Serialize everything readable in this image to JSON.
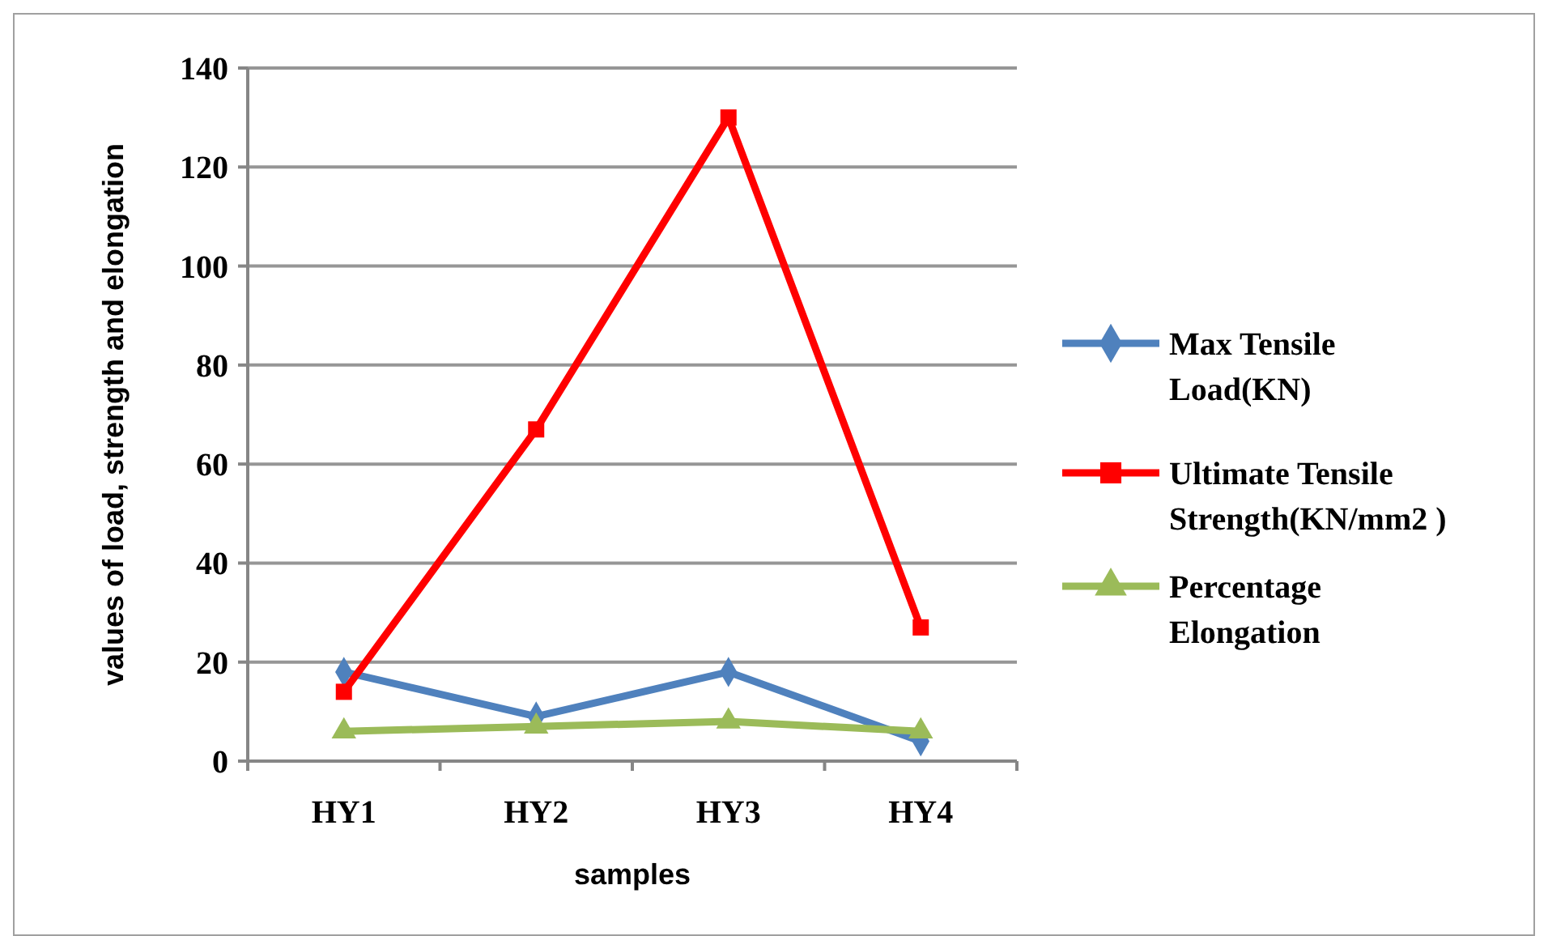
{
  "chart_data": {
    "type": "line",
    "xlabel": "samples",
    "ylabel": "values of load, strength and elongation",
    "categories": [
      "HY1",
      "HY2",
      "HY3",
      "HY4"
    ],
    "series": [
      {
        "name": "Max Tensile Load(KN)",
        "color": "#4f81bd",
        "marker": "diamond",
        "values": [
          18,
          9,
          18,
          4
        ]
      },
      {
        "name": "Ultimate Tensile Strength(KN/mm2 )",
        "color": "#ff0000",
        "marker": "square",
        "values": [
          14,
          67,
          130,
          27
        ]
      },
      {
        "name": "Percentage Elongation",
        "color": "#9bbb59",
        "marker": "triangle",
        "values": [
          6,
          7,
          8,
          6
        ]
      }
    ],
    "ylim": [
      0,
      140
    ],
    "yticks": [
      0,
      20,
      40,
      60,
      80,
      100,
      120,
      140
    ],
    "grid": "y",
    "legend": "right",
    "line_style": "solid"
  }
}
